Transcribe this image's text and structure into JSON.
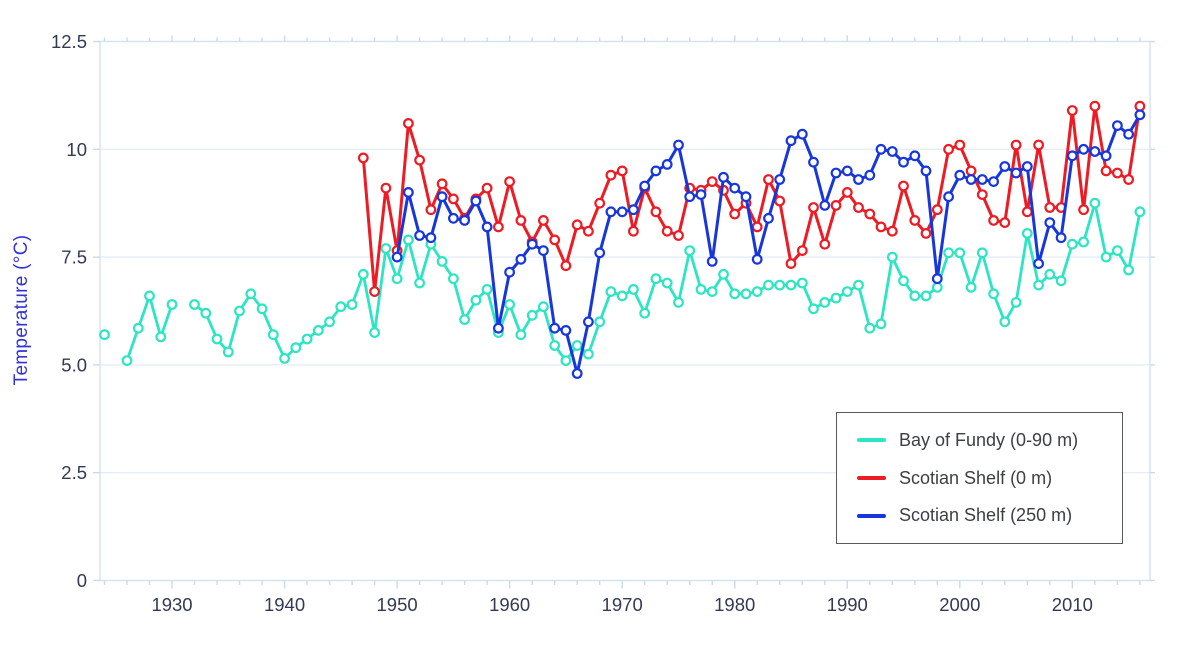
{
  "chart_data": {
    "type": "line",
    "title": "",
    "xlabel": "",
    "ylabel": "Temperature (°C)",
    "xlim": [
      1923.6,
      2016.9
    ],
    "ylim": [
      0,
      12.5
    ],
    "grid": "horizontal-only",
    "legend_position": "inside-right-bottom",
    "x_major_ticks": [
      1930,
      1940,
      1950,
      1960,
      1970,
      1980,
      1990,
      2000,
      2010
    ],
    "x_major_tick_labels": [
      "1930",
      "1940",
      "1950",
      "1960",
      "1970",
      "1980",
      "1990",
      "2000",
      "2010"
    ],
    "x_minor_tick_step_years": 2,
    "y_ticks": [
      0,
      2.5,
      5.0,
      7.5,
      10,
      12.5
    ],
    "y_tick_labels": [
      "0",
      "2.5",
      "5.0",
      "7.5",
      "10",
      "12.5"
    ],
    "colors": {
      "ylabel": "#3333d6",
      "tick_label": "#333a54",
      "grid": "#e3eef6",
      "plot_border": "#d2e3ef",
      "tick_mark": "#c8dcea",
      "legend_border": "#565a5e",
      "legend_text": "#3c4045",
      "background": "#ffffff"
    },
    "series": [
      {
        "name": "Bay of Fundy (0-90 m)",
        "color": "#2de5c2",
        "points": [
          [
            1924,
            5.7
          ],
          [
            1926,
            5.1
          ],
          [
            1927,
            5.85
          ],
          [
            1928,
            6.6
          ],
          [
            1929,
            5.65
          ],
          [
            1930,
            6.4
          ],
          [
            1932,
            6.4
          ],
          [
            1933,
            6.2
          ],
          [
            1934,
            5.6
          ],
          [
            1935,
            5.3
          ],
          [
            1936,
            6.25
          ],
          [
            1937,
            6.65
          ],
          [
            1938,
            6.3
          ],
          [
            1939,
            5.7
          ],
          [
            1940,
            5.15
          ],
          [
            1941,
            5.4
          ],
          [
            1942,
            5.6
          ],
          [
            1943,
            5.8
          ],
          [
            1944,
            6.0
          ],
          [
            1945,
            6.35
          ],
          [
            1946,
            6.4
          ],
          [
            1947,
            7.1
          ],
          [
            1948,
            5.75
          ],
          [
            1949,
            7.7
          ],
          [
            1950,
            7.0
          ],
          [
            1951,
            7.9
          ],
          [
            1952,
            6.9
          ],
          [
            1953,
            7.8
          ],
          [
            1954,
            7.4
          ],
          [
            1955,
            7.0
          ],
          [
            1956,
            6.05
          ],
          [
            1957,
            6.5
          ],
          [
            1958,
            6.75
          ],
          [
            1959,
            5.75
          ],
          [
            1960,
            6.4
          ],
          [
            1961,
            5.7
          ],
          [
            1962,
            6.15
          ],
          [
            1963,
            6.35
          ],
          [
            1964,
            5.45
          ],
          [
            1965,
            5.1
          ],
          [
            1966,
            5.45
          ],
          [
            1967,
            5.25
          ],
          [
            1968,
            6.0
          ],
          [
            1969,
            6.7
          ],
          [
            1970,
            6.6
          ],
          [
            1971,
            6.75
          ],
          [
            1972,
            6.2
          ],
          [
            1973,
            7.0
          ],
          [
            1974,
            6.9
          ],
          [
            1975,
            6.45
          ],
          [
            1976,
            7.65
          ],
          [
            1977,
            6.75
          ],
          [
            1978,
            6.7
          ],
          [
            1979,
            7.1
          ],
          [
            1980,
            6.65
          ],
          [
            1981,
            6.65
          ],
          [
            1982,
            6.7
          ],
          [
            1983,
            6.85
          ],
          [
            1984,
            6.85
          ],
          [
            1985,
            6.85
          ],
          [
            1986,
            6.9
          ],
          [
            1987,
            6.3
          ],
          [
            1988,
            6.45
          ],
          [
            1989,
            6.55
          ],
          [
            1990,
            6.7
          ],
          [
            1991,
            6.85
          ],
          [
            1992,
            5.85
          ],
          [
            1993,
            5.95
          ],
          [
            1994,
            7.5
          ],
          [
            1995,
            6.95
          ],
          [
            1996,
            6.6
          ],
          [
            1997,
            6.6
          ],
          [
            1998,
            6.8
          ],
          [
            1999,
            7.6
          ],
          [
            2000,
            7.6
          ],
          [
            2001,
            6.8
          ],
          [
            2002,
            7.6
          ],
          [
            2003,
            6.65
          ],
          [
            2004,
            6.0
          ],
          [
            2005,
            6.45
          ],
          [
            2006,
            8.05
          ],
          [
            2007,
            6.85
          ],
          [
            2008,
            7.1
          ],
          [
            2009,
            6.95
          ],
          [
            2010,
            7.8
          ],
          [
            2011,
            7.85
          ],
          [
            2012,
            8.75
          ],
          [
            2013,
            7.5
          ],
          [
            2014,
            7.65
          ],
          [
            2015,
            7.2
          ],
          [
            2016,
            8.55
          ]
        ]
      },
      {
        "name": "Scotian Shelf (0 m)",
        "color": "#ed1c24",
        "points": [
          [
            1947,
            9.8
          ],
          [
            1948,
            6.7
          ],
          [
            1949,
            9.1
          ],
          [
            1950,
            7.65
          ],
          [
            1951,
            10.6
          ],
          [
            1952,
            9.75
          ],
          [
            1953,
            8.6
          ],
          [
            1954,
            9.2
          ],
          [
            1955,
            8.85
          ],
          [
            1956,
            8.4
          ],
          [
            1957,
            8.85
          ],
          [
            1958,
            9.1
          ],
          [
            1959,
            8.2
          ],
          [
            1960,
            9.25
          ],
          [
            1961,
            8.35
          ],
          [
            1962,
            7.85
          ],
          [
            1963,
            8.35
          ],
          [
            1964,
            7.9
          ],
          [
            1965,
            7.3
          ],
          [
            1966,
            8.25
          ],
          [
            1967,
            8.1
          ],
          [
            1968,
            8.75
          ],
          [
            1969,
            9.4
          ],
          [
            1970,
            9.5
          ],
          [
            1971,
            8.1
          ],
          [
            1972,
            9.1
          ],
          [
            1973,
            8.55
          ],
          [
            1974,
            8.1
          ],
          [
            1975,
            8.0
          ],
          [
            1976,
            9.1
          ],
          [
            1977,
            9.05
          ],
          [
            1978,
            9.25
          ],
          [
            1979,
            9.05
          ],
          [
            1980,
            8.5
          ],
          [
            1981,
            8.75
          ],
          [
            1982,
            8.2
          ],
          [
            1983,
            9.3
          ],
          [
            1984,
            8.8
          ],
          [
            1985,
            7.35
          ],
          [
            1986,
            7.65
          ],
          [
            1987,
            8.65
          ],
          [
            1988,
            7.8
          ],
          [
            1989,
            8.7
          ],
          [
            1990,
            9.0
          ],
          [
            1991,
            8.65
          ],
          [
            1992,
            8.5
          ],
          [
            1993,
            8.2
          ],
          [
            1994,
            8.1
          ],
          [
            1995,
            9.15
          ],
          [
            1996,
            8.35
          ],
          [
            1997,
            8.05
          ],
          [
            1998,
            8.6
          ],
          [
            1999,
            10.0
          ],
          [
            2000,
            10.1
          ],
          [
            2001,
            9.5
          ],
          [
            2002,
            8.95
          ],
          [
            2003,
            8.35
          ],
          [
            2004,
            8.3
          ],
          [
            2005,
            10.1
          ],
          [
            2006,
            8.55
          ],
          [
            2007,
            10.1
          ],
          [
            2008,
            8.65
          ],
          [
            2009,
            8.65
          ],
          [
            2010,
            10.9
          ],
          [
            2011,
            8.6
          ],
          [
            2012,
            11.0
          ],
          [
            2013,
            9.5
          ],
          [
            2014,
            9.45
          ],
          [
            2015,
            9.3
          ],
          [
            2016,
            11.0
          ]
        ]
      },
      {
        "name": "Scotian Shelf (250 m)",
        "color": "#1737dc",
        "points": [
          [
            1950,
            7.5
          ],
          [
            1951,
            9.0
          ],
          [
            1952,
            8.0
          ],
          [
            1953,
            7.95
          ],
          [
            1954,
            8.9
          ],
          [
            1955,
            8.4
          ],
          [
            1956,
            8.35
          ],
          [
            1957,
            8.8
          ],
          [
            1958,
            8.2
          ],
          [
            1959,
            5.85
          ],
          [
            1960,
            7.15
          ],
          [
            1961,
            7.45
          ],
          [
            1962,
            7.8
          ],
          [
            1963,
            7.65
          ],
          [
            1964,
            5.85
          ],
          [
            1965,
            5.8
          ],
          [
            1966,
            4.8
          ],
          [
            1967,
            6.0
          ],
          [
            1968,
            7.6
          ],
          [
            1969,
            8.55
          ],
          [
            1970,
            8.55
          ],
          [
            1971,
            8.6
          ],
          [
            1972,
            9.15
          ],
          [
            1973,
            9.5
          ],
          [
            1974,
            9.65
          ],
          [
            1975,
            10.1
          ],
          [
            1976,
            8.9
          ],
          [
            1977,
            8.95
          ],
          [
            1978,
            7.4
          ],
          [
            1979,
            9.35
          ],
          [
            1980,
            9.1
          ],
          [
            1981,
            8.9
          ],
          [
            1982,
            7.45
          ],
          [
            1983,
            8.4
          ],
          [
            1984,
            9.3
          ],
          [
            1985,
            10.2
          ],
          [
            1986,
            10.35
          ],
          [
            1987,
            9.7
          ],
          [
            1988,
            8.7
          ],
          [
            1989,
            9.45
          ],
          [
            1990,
            9.5
          ],
          [
            1991,
            9.3
          ],
          [
            1992,
            9.4
          ],
          [
            1993,
            10.0
          ],
          [
            1994,
            9.95
          ],
          [
            1995,
            9.7
          ],
          [
            1996,
            9.85
          ],
          [
            1997,
            9.5
          ],
          [
            1998,
            7.0
          ],
          [
            1999,
            8.9
          ],
          [
            2000,
            9.4
          ],
          [
            2001,
            9.3
          ],
          [
            2002,
            9.3
          ],
          [
            2003,
            9.25
          ],
          [
            2004,
            9.6
          ],
          [
            2005,
            9.45
          ],
          [
            2006,
            9.6
          ],
          [
            2007,
            7.35
          ],
          [
            2008,
            8.3
          ],
          [
            2009,
            7.95
          ],
          [
            2010,
            9.85
          ],
          [
            2011,
            10.0
          ],
          [
            2012,
            9.95
          ],
          [
            2013,
            9.85
          ],
          [
            2014,
            10.55
          ],
          [
            2015,
            10.35
          ],
          [
            2016,
            10.8
          ]
        ]
      }
    ]
  }
}
